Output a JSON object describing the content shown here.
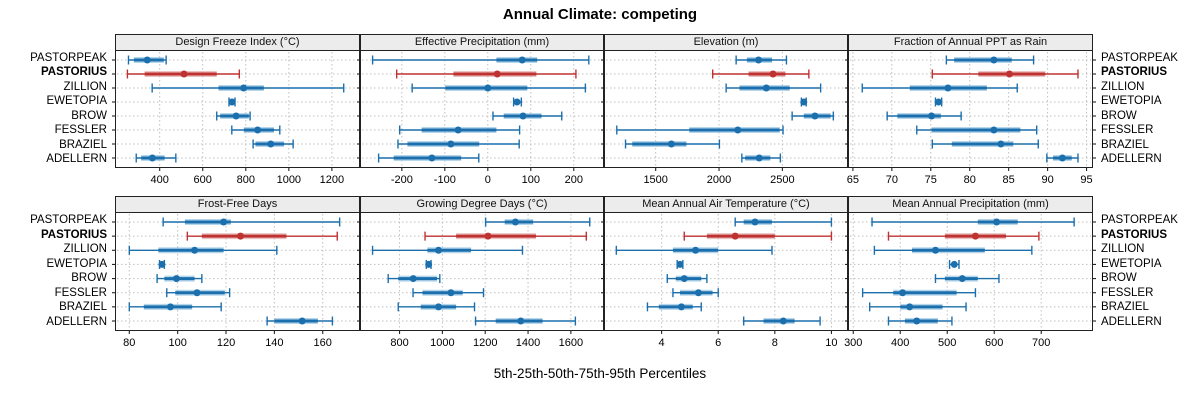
{
  "title": "Annual Climate: competing",
  "caption": "5th-25th-50th-75th-95th Percentiles",
  "locations": [
    "PASTORPEAK",
    "PASTORIUS",
    "ZILLION",
    "EWETOPIA",
    "BROW",
    "FESSLER",
    "BRAZIEL",
    "ADELLERN"
  ],
  "highlight": "PASTORIUS",
  "colors": {
    "normal": "#1c6fad",
    "normal_light": "#8fc0e1",
    "highlight": "#bf3232",
    "highlight_light": "#e2a1a1",
    "grid": "#bfbfbf",
    "strip_bg": "#ececec",
    "border": "#222222"
  },
  "chart_data": {
    "type": "dotplot-percentiles",
    "percentile_labels": [
      "5th",
      "25th",
      "50th",
      "75th",
      "95th"
    ],
    "legend_note": "rows are locations; PASTORIUS highlighted in red",
    "panels": [
      {
        "title": "Design Freeze Index (°C)",
        "row": 0,
        "col": 0,
        "range": [
          197,
          1326
        ],
        "ticks": [
          400,
          600,
          800,
          1000,
          1200
        ],
        "series": [
          [
            255,
            280,
            342,
            419,
            430
          ],
          [
            250,
            330,
            513,
            665,
            770
          ],
          [
            365,
            673,
            790,
            884,
            1255
          ],
          [
            722,
            729,
            736,
            743,
            750
          ],
          [
            665,
            681,
            755,
            814,
            820
          ],
          [
            735,
            791,
            855,
            931,
            958
          ],
          [
            834,
            845,
            916,
            978,
            1020
          ],
          [
            291,
            314,
            366,
            423,
            475
          ]
        ]
      },
      {
        "title": "Effective Precipitation (mm)",
        "row": 0,
        "col": 1,
        "range": [
          -295,
          268
        ],
        "ticks": [
          -200,
          -100,
          0,
          100,
          200
        ],
        "series": [
          [
            -268,
            20,
            80,
            115,
            235
          ],
          [
            -212,
            -80,
            22,
            113,
            205
          ],
          [
            -176,
            -99,
            0,
            92,
            227
          ],
          [
            60,
            64,
            68,
            72,
            78
          ],
          [
            12,
            37,
            82,
            125,
            172
          ],
          [
            -205,
            -154,
            -69,
            20,
            74
          ],
          [
            -209,
            -187,
            -86,
            -20,
            73
          ],
          [
            -254,
            -219,
            -130,
            -62,
            -21
          ]
        ]
      },
      {
        "title": "Elevation (m)",
        "row": 0,
        "col": 2,
        "range": [
          1100,
          3010
        ],
        "ticks": [
          1500,
          2000,
          2500
        ],
        "series": [
          [
            2135,
            2220,
            2312,
            2418,
            2532
          ],
          [
            1950,
            2233,
            2426,
            2524,
            2709
          ],
          [
            2056,
            2161,
            2373,
            2558,
            2802
          ],
          [
            2650,
            2660,
            2669,
            2678,
            2688
          ],
          [
            2577,
            2669,
            2757,
            2881,
            2902
          ],
          [
            1193,
            1765,
            2148,
            2479,
            2505
          ],
          [
            1262,
            1315,
            1624,
            1743,
            2003
          ],
          [
            2180,
            2206,
            2317,
            2405,
            2484
          ]
        ]
      },
      {
        "title": "Fraction of Annual PPT as Rain",
        "row": 0,
        "col": 3,
        "range": [
          64.5,
          95.7
        ],
        "ticks": [
          65,
          70,
          75,
          80,
          85,
          90,
          95
        ],
        "series": [
          [
            77,
            78,
            83.1,
            85.4,
            88.2
          ],
          [
            75.2,
            81.1,
            85.1,
            89.7,
            93.9
          ],
          [
            66.2,
            72.3,
            77.2,
            82.2,
            86.1
          ],
          [
            75.6,
            75.8,
            76,
            76.2,
            76.4
          ],
          [
            69.4,
            70.7,
            75.1,
            76.3,
            78.9
          ],
          [
            73.2,
            75.1,
            83.1,
            86.5,
            88.6
          ],
          [
            75.2,
            77.7,
            84,
            85.6,
            88.8
          ],
          [
            89.9,
            90.7,
            91.9,
            93.1,
            93.9
          ]
        ]
      },
      {
        "title": "Frost-Free Days",
        "row": 1,
        "col": 0,
        "range": [
          74.5,
          175
        ],
        "ticks": [
          80,
          100,
          120,
          140,
          160
        ],
        "series": [
          [
            94,
            103,
            119,
            122,
            167
          ],
          [
            104,
            110,
            126,
            145,
            166
          ],
          [
            80,
            92,
            107,
            119,
            141
          ],
          [
            92.5,
            93,
            93.5,
            94,
            94.5
          ],
          [
            91.5,
            94.5,
            99.5,
            107,
            110
          ],
          [
            95.5,
            99,
            108,
            119.5,
            121.5
          ],
          [
            80,
            86,
            97,
            106,
            118
          ],
          [
            137,
            140,
            151.5,
            158,
            164
          ]
        ]
      },
      {
        "title": "Growing Degree Days (°C)",
        "row": 1,
        "col": 1,
        "range": [
          620,
          1750
        ],
        "ticks": [
          800,
          1000,
          1200,
          1400,
          1600
        ],
        "series": [
          [
            1202,
            1291,
            1341,
            1424,
            1688
          ],
          [
            919,
            1064,
            1213,
            1437,
            1672
          ],
          [
            674,
            930,
            982,
            1134,
            1374
          ],
          [
            925,
            930,
            936,
            941,
            947
          ],
          [
            747,
            794,
            864,
            975,
            988
          ],
          [
            863,
            907,
            1040,
            1095,
            1192
          ],
          [
            794,
            899,
            982,
            1064,
            1150
          ],
          [
            1155,
            1249,
            1366,
            1468,
            1621
          ]
        ]
      },
      {
        "title": "Mean Annual Air Temperature (°C)",
        "row": 1,
        "col": 2,
        "range": [
          2.0,
          10.55
        ],
        "ticks": [
          4,
          6,
          8,
          10
        ],
        "series": [
          [
            6.6,
            6.9,
            7.3,
            7.9,
            10
          ],
          [
            4.8,
            5.6,
            6.6,
            8,
            10
          ],
          [
            2.4,
            4.4,
            5.2,
            6,
            7.9
          ],
          [
            4.55,
            4.6,
            4.65,
            4.7,
            4.75
          ],
          [
            4.2,
            4.5,
            4.8,
            5.4,
            5.6
          ],
          [
            4.4,
            4.65,
            5.3,
            5.8,
            6
          ],
          [
            3.5,
            3.9,
            4.7,
            5.1,
            5.4
          ],
          [
            6.9,
            7.6,
            8.3,
            8.7,
            9.6
          ]
        ]
      },
      {
        "title": "Mean Annual Precipitation (mm)",
        "row": 1,
        "col": 3,
        "range": [
          291,
          808
        ],
        "ticks": [
          300,
          400,
          500,
          600,
          700
        ],
        "series": [
          [
            340,
            565,
            605,
            650,
            770
          ],
          [
            375,
            495,
            560,
            625,
            695
          ],
          [
            345,
            425,
            475,
            580,
            680
          ],
          [
            505,
            510,
            515,
            520,
            525
          ],
          [
            475,
            495,
            532,
            565,
            610
          ],
          [
            320,
            385,
            405,
            520,
            560
          ],
          [
            335,
            400,
            420,
            490,
            540
          ],
          [
            375,
            410,
            435,
            480,
            510
          ]
        ]
      }
    ]
  }
}
